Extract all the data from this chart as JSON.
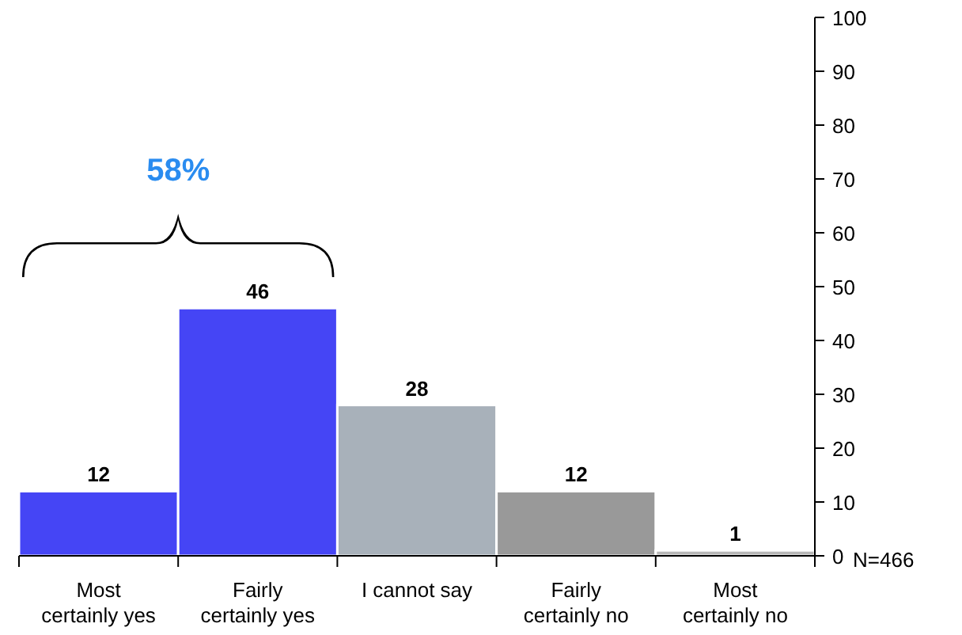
{
  "chart_data": {
    "type": "bar",
    "categories": [
      "Most certainly yes",
      "Fairly certainly yes",
      "I cannot say",
      "Fairly certainly no",
      "Most certainly no"
    ],
    "values": [
      12,
      46,
      28,
      12,
      1
    ],
    "colors": [
      "#4545f5",
      "#4545f5",
      "#a8b1ba",
      "#999999",
      "#b8b8b8"
    ],
    "ylim": [
      0,
      100
    ],
    "yticks": [
      0,
      10,
      20,
      30,
      40,
      50,
      60,
      70,
      80,
      90,
      100
    ],
    "data_labels": true,
    "grid": false,
    "annotations": [
      "58%",
      "N=466"
    ]
  }
}
